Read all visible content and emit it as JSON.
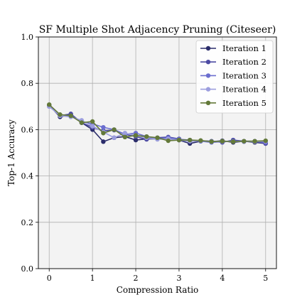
{
  "chart_data": {
    "type": "line",
    "title": "SF Multiple Shot Adjacency Pruning (Citeseer)",
    "xlabel": "Compression Ratio",
    "ylabel": "Top-1 Accuracy",
    "xlim": [
      -0.25,
      5.25
    ],
    "ylim": [
      0.0,
      1.0
    ],
    "xticks": [
      0,
      1,
      2,
      3,
      4,
      5
    ],
    "yticks": [
      0.0,
      0.2,
      0.4,
      0.6,
      0.8,
      1.0
    ],
    "grid": true,
    "legend_position": "top-right",
    "x": [
      0,
      0.25,
      0.5,
      0.75,
      1.0,
      1.25,
      1.5,
      1.75,
      2.0,
      2.25,
      2.5,
      2.75,
      3.0,
      3.25,
      3.5,
      3.75,
      4.0,
      4.25,
      4.5,
      4.75,
      5.0
    ],
    "series": [
      {
        "name": "Iteration 1",
        "color": "#2b2d6b",
        "values": [
          0.705,
          0.655,
          0.665,
          0.63,
          0.6,
          0.548,
          0.565,
          0.57,
          0.555,
          0.56,
          0.56,
          0.56,
          0.555,
          0.54,
          0.55,
          0.548,
          0.552,
          0.545,
          0.55,
          0.545,
          0.54
        ]
      },
      {
        "name": "Iteration 2",
        "color": "#4d4ba3",
        "values": [
          0.703,
          0.66,
          0.668,
          0.63,
          0.61,
          0.595,
          0.598,
          0.58,
          0.57,
          0.558,
          0.565,
          0.568,
          0.56,
          0.55,
          0.552,
          0.55,
          0.545,
          0.555,
          0.55,
          0.55,
          0.54
        ]
      },
      {
        "name": "Iteration 3",
        "color": "#6b6ecf",
        "values": [
          0.7,
          0.662,
          0.66,
          0.635,
          0.625,
          0.61,
          0.6,
          0.58,
          0.585,
          0.57,
          0.56,
          0.565,
          0.558,
          0.555,
          0.55,
          0.545,
          0.548,
          0.55,
          0.548,
          0.55,
          0.545
        ]
      },
      {
        "name": "Iteration 4",
        "color": "#9c9ede",
        "values": [
          0.7,
          0.66,
          0.655,
          0.64,
          0.615,
          0.59,
          0.565,
          0.585,
          0.575,
          0.565,
          0.558,
          0.56,
          0.555,
          0.55,
          0.552,
          0.548,
          0.55,
          0.548,
          0.55,
          0.548,
          0.55
        ]
      },
      {
        "name": "Iteration 5",
        "color": "#637939",
        "values": [
          0.708,
          0.665,
          0.66,
          0.63,
          0.635,
          0.585,
          0.6,
          0.568,
          0.575,
          0.57,
          0.565,
          0.552,
          0.555,
          0.555,
          0.553,
          0.548,
          0.55,
          0.548,
          0.55,
          0.55,
          0.552
        ]
      }
    ]
  }
}
